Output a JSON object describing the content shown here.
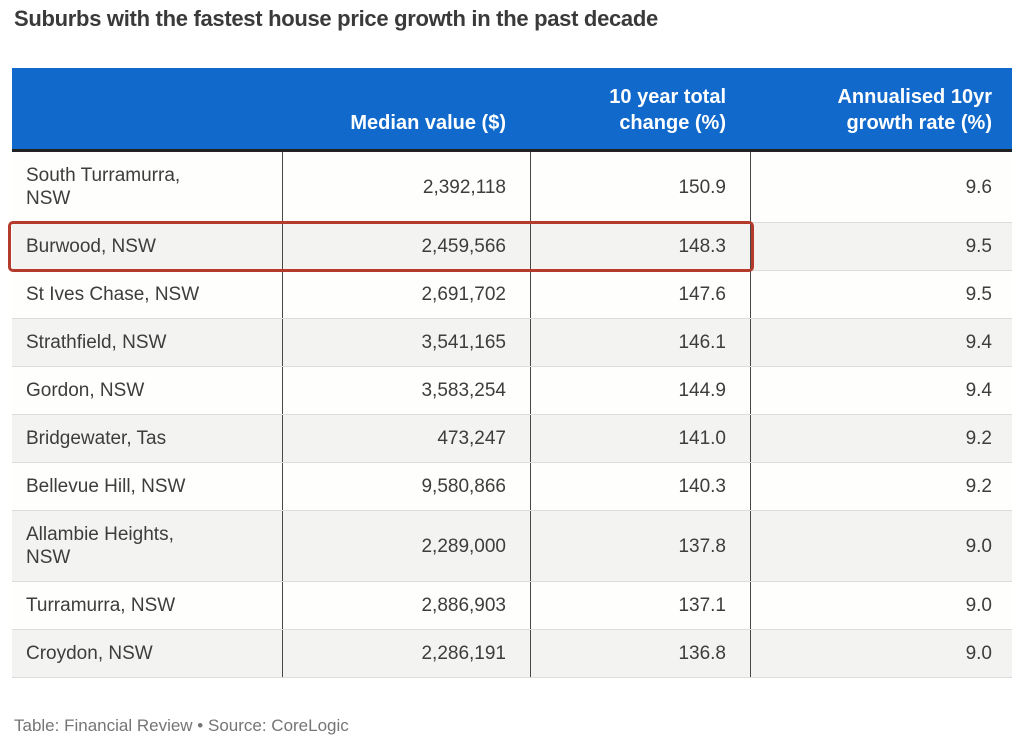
{
  "title": "Suburbs with the fastest house price growth in the past decade",
  "source_note": "Table: Financial Review • Source: CoreLogic",
  "colors": {
    "header_bg": "#1169cb",
    "row_alt_bg": "#f3f3f1",
    "highlight_border": "#b43a2c",
    "header_text": "#ffffff",
    "cell_text": "#3d3d3d"
  },
  "table": {
    "headers": {
      "suburb": "",
      "median": "Median value ($)",
      "change": "10 year total\nchange (%)",
      "growth": "Annualised 10yr\ngrowth rate (%)"
    },
    "rows": [
      {
        "suburb": "South Turramurra,\nNSW",
        "median_value": "2,392,118",
        "total_change": "150.9",
        "growth_rate": "9.6",
        "highlighted": false
      },
      {
        "suburb": "Burwood, NSW",
        "median_value": "2,459,566",
        "total_change": "148.3",
        "growth_rate": "9.5",
        "highlighted": true
      },
      {
        "suburb": "St Ives Chase, NSW",
        "median_value": "2,691,702",
        "total_change": "147.6",
        "growth_rate": "9.5",
        "highlighted": false
      },
      {
        "suburb": "Strathfield, NSW",
        "median_value": "3,541,165",
        "total_change": "146.1",
        "growth_rate": "9.4",
        "highlighted": false
      },
      {
        "suburb": "Gordon, NSW",
        "median_value": "3,583,254",
        "total_change": "144.9",
        "growth_rate": "9.4",
        "highlighted": false
      },
      {
        "suburb": "Bridgewater, Tas",
        "median_value": "473,247",
        "total_change": "141.0",
        "growth_rate": "9.2",
        "highlighted": false
      },
      {
        "suburb": "Bellevue Hill, NSW",
        "median_value": "9,580,866",
        "total_change": "140.3",
        "growth_rate": "9.2",
        "highlighted": false
      },
      {
        "suburb": "Allambie Heights,\nNSW",
        "median_value": "2,289,000",
        "total_change": "137.8",
        "growth_rate": "9.0",
        "highlighted": false
      },
      {
        "suburb": "Turramurra, NSW",
        "median_value": "2,886,903",
        "total_change": "137.1",
        "growth_rate": "9.0",
        "highlighted": false
      },
      {
        "suburb": "Croydon, NSW",
        "median_value": "2,286,191",
        "total_change": "136.8",
        "growth_rate": "9.0",
        "highlighted": false
      }
    ]
  },
  "chart_data": {
    "type": "table",
    "title": "Suburbs with the fastest house price growth in the past decade",
    "columns": [
      "",
      "Median value ($)",
      "10 year total change (%)",
      "Annualised 10yr growth rate (%)"
    ],
    "rows": [
      [
        "South Turramurra, NSW",
        2392118,
        150.9,
        9.6
      ],
      [
        "Burwood, NSW",
        2459566,
        148.3,
        9.5
      ],
      [
        "St Ives Chase, NSW",
        2691702,
        147.6,
        9.5
      ],
      [
        "Strathfield, NSW",
        3541165,
        146.1,
        9.4
      ],
      [
        "Gordon, NSW",
        3583254,
        144.9,
        9.4
      ],
      [
        "Bridgewater, Tas",
        473247,
        141.0,
        9.2
      ],
      [
        "Bellevue Hill, NSW",
        9580866,
        140.3,
        9.2
      ],
      [
        "Allambie Heights, NSW",
        2289000,
        137.8,
        9.0
      ],
      [
        "Turramurra, NSW",
        2886903,
        137.1,
        9.0
      ],
      [
        "Croydon, NSW",
        2286191,
        136.8,
        9.0
      ]
    ],
    "highlighted_row": "Burwood, NSW",
    "notes": "Red outline highlights the Burwood row across the first three columns",
    "source": "Table: Financial Review • Source: CoreLogic"
  }
}
